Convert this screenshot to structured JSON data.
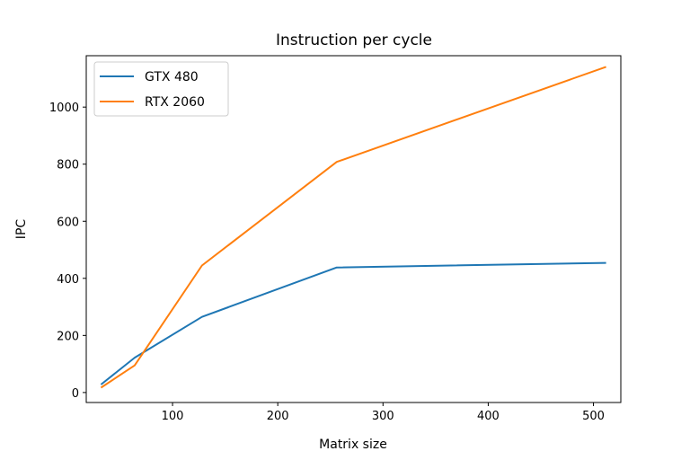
{
  "chart_data": {
    "type": "line",
    "title": "Instruction per cycle",
    "xlabel": "Matrix size",
    "ylabel": "IPC",
    "xlim": [
      18,
      526
    ],
    "ylim": [
      -35,
      1180
    ],
    "xticks": [
      100,
      200,
      300,
      400,
      500
    ],
    "yticks": [
      0,
      200,
      400,
      600,
      800,
      1000
    ],
    "grid": false,
    "legend": "top-left",
    "series": [
      {
        "name": "GTX 480",
        "color": "#1f77b4",
        "x": [
          32,
          64,
          128,
          256,
          512
        ],
        "y": [
          28,
          122,
          265,
          438,
          454
        ]
      },
      {
        "name": "RTX 2060",
        "color": "#ff7f0e",
        "x": [
          32,
          64,
          128,
          256,
          512
        ],
        "y": [
          17,
          95,
          445,
          808,
          1141
        ]
      }
    ]
  }
}
